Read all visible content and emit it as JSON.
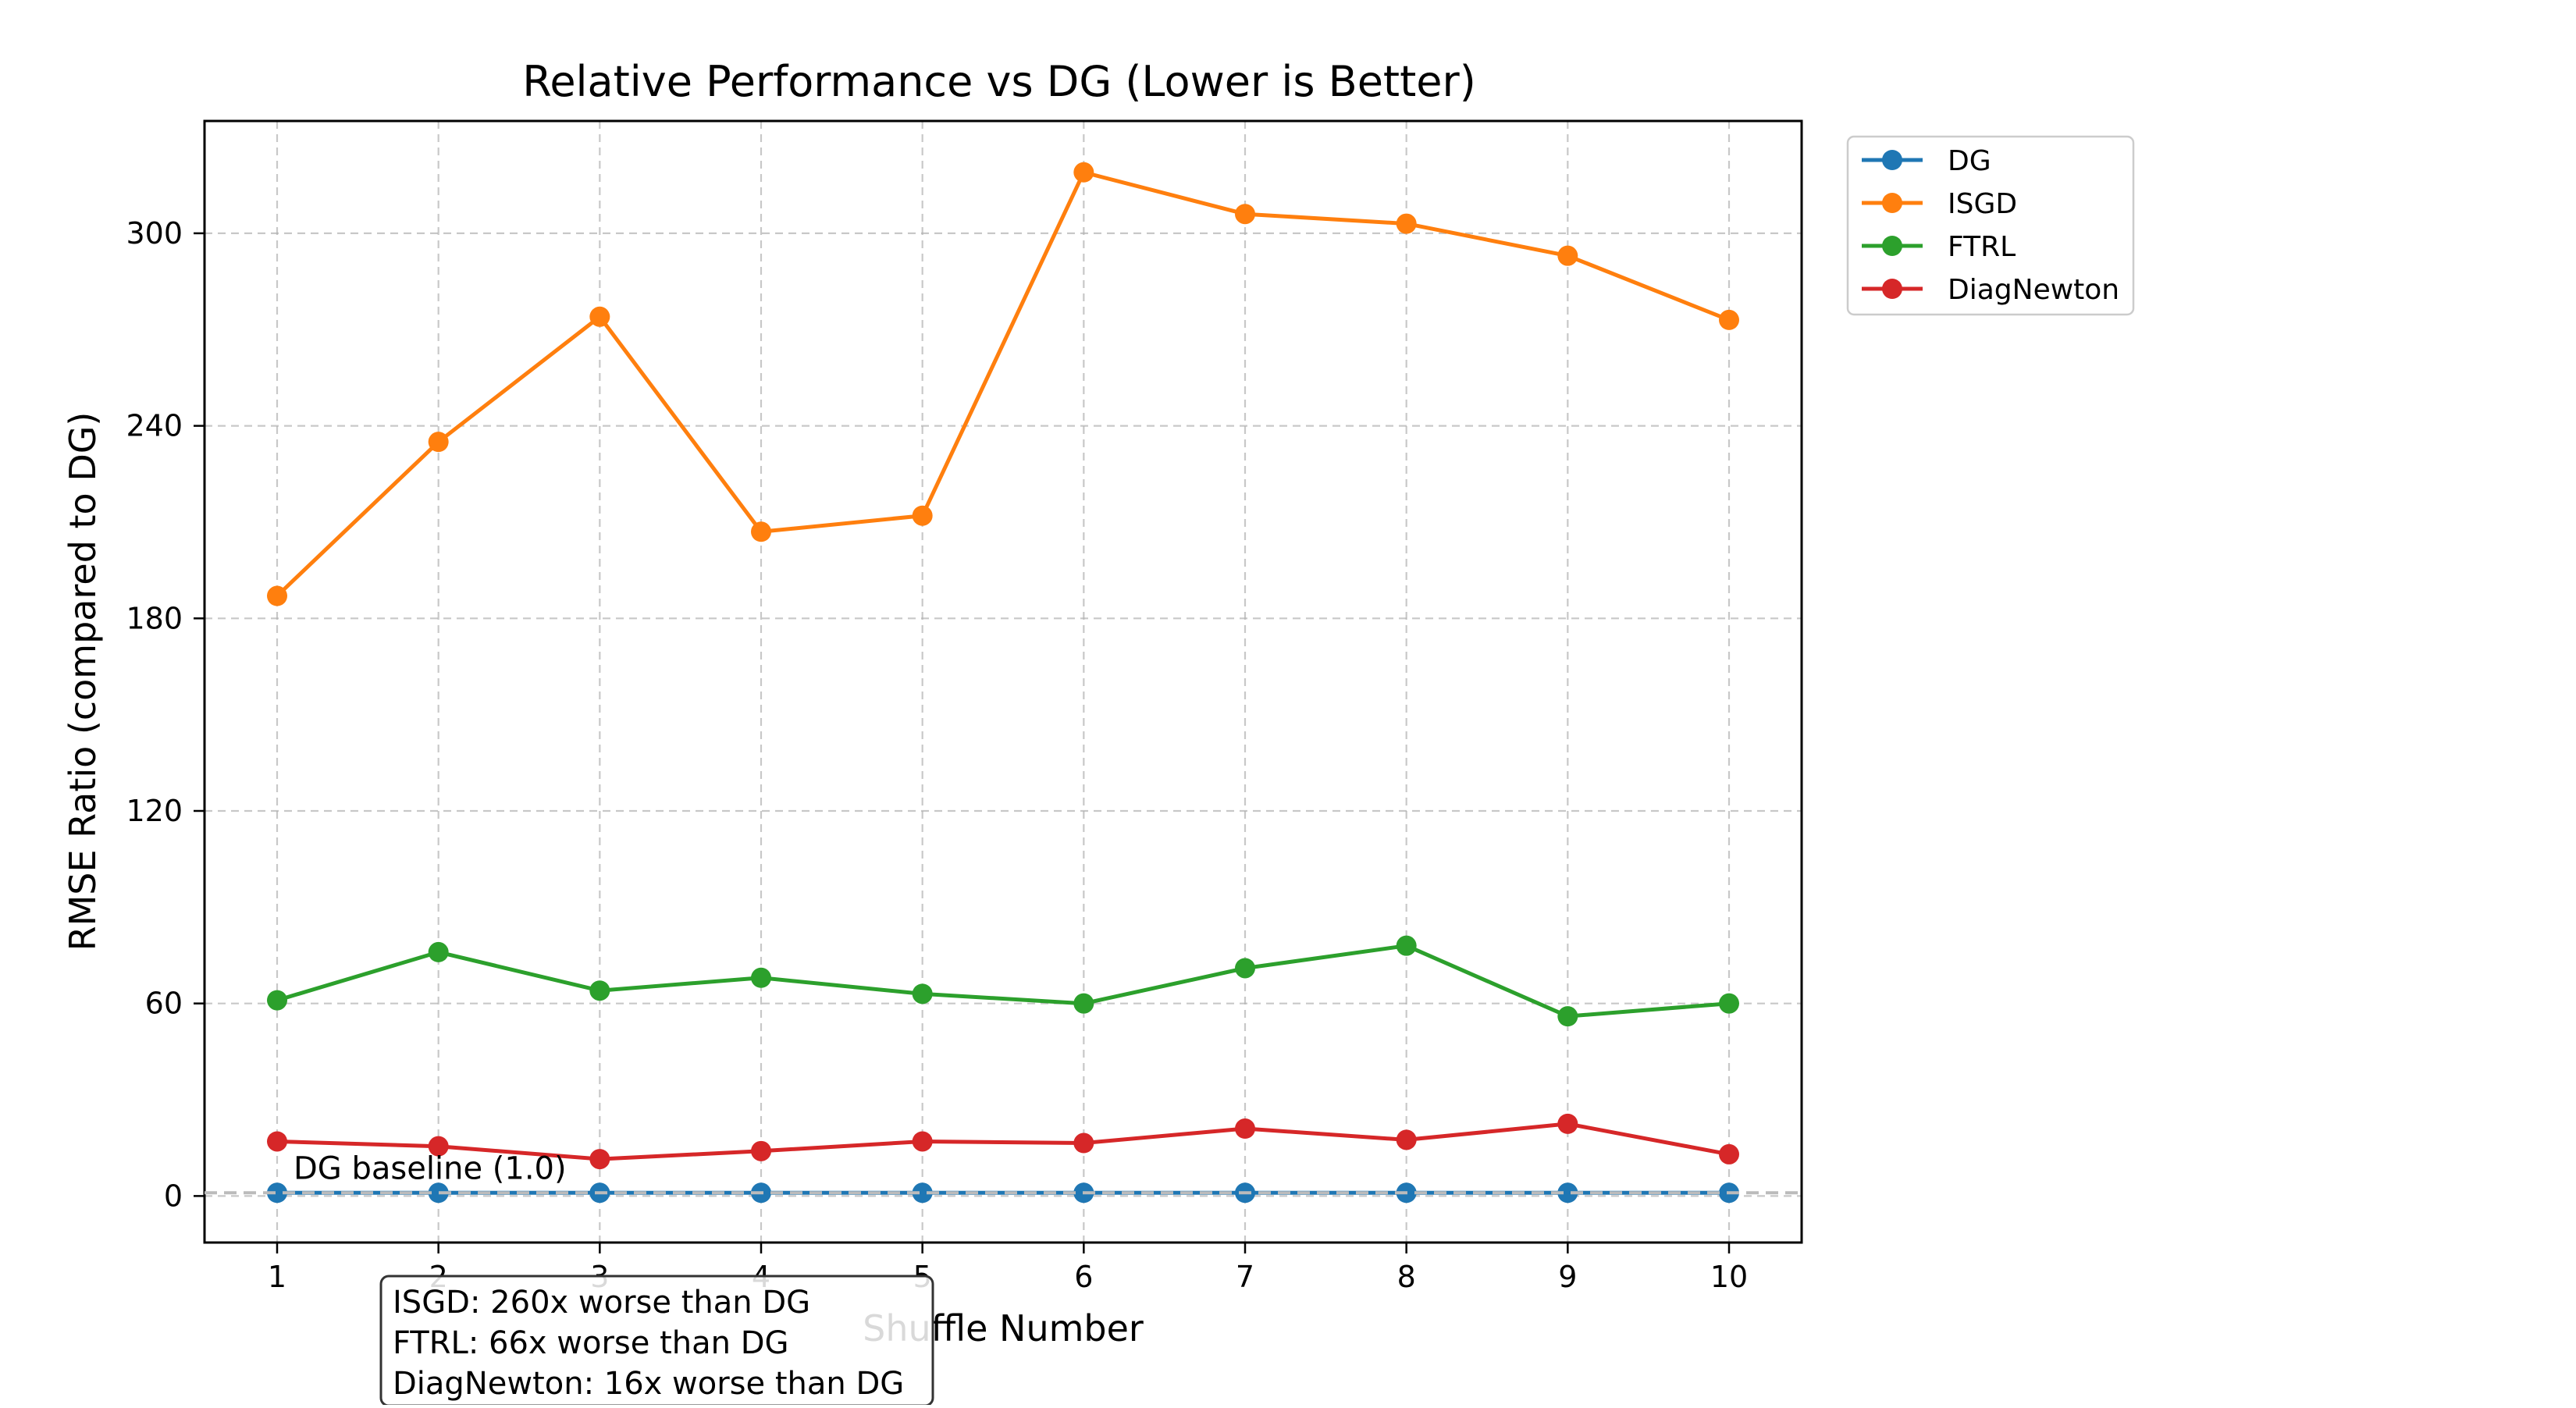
{
  "chart_data": {
    "type": "line",
    "title": "Relative Performance vs DG (Lower is Better)",
    "xlabel": "Shuffle Number",
    "ylabel": "RMSE Ratio (compared to DG)",
    "x": [
      1,
      2,
      3,
      4,
      5,
      6,
      7,
      8,
      9,
      10
    ],
    "xlim": [
      0.55,
      10.45
    ],
    "ylim": [
      -14.5,
      335
    ],
    "yticks": [
      0,
      60,
      120,
      180,
      240,
      300
    ],
    "grid": true,
    "legend_position": "outside-top-right",
    "series": [
      {
        "name": "DG",
        "color": "#1f77b4",
        "values": [
          1,
          1,
          1,
          1,
          1,
          1,
          1,
          1,
          1,
          1
        ]
      },
      {
        "name": "ISGD",
        "color": "#ff7f0e",
        "values": [
          187,
          235,
          274,
          207,
          212,
          319,
          306,
          303,
          293,
          273
        ]
      },
      {
        "name": "FTRL",
        "color": "#2ca02c",
        "values": [
          61,
          76,
          64,
          68,
          63,
          60,
          71,
          78,
          56,
          60
        ]
      },
      {
        "name": "DiagNewton",
        "color": "#d62728",
        "values": [
          17,
          15.5,
          11.5,
          14,
          17,
          16.5,
          21,
          17.5,
          22.5,
          13
        ]
      }
    ],
    "baseline": {
      "value": 1,
      "label": "DG baseline (1.0)",
      "color": "#bbbbbb"
    },
    "annotation_box": [
      "ISGD: 260x worse than DG",
      "FTRL: 66x worse than DG",
      "DiagNewton: 16x worse than DG"
    ]
  }
}
